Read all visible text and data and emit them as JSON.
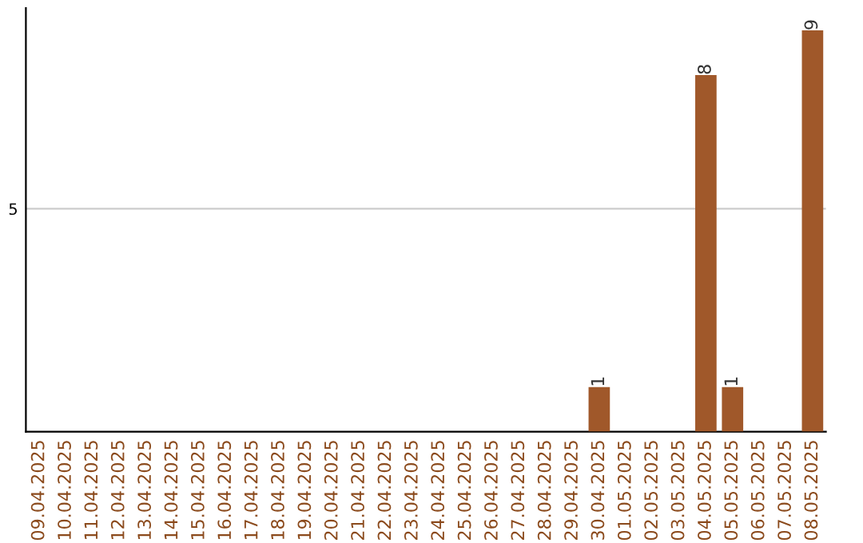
{
  "chart_data": {
    "type": "bar",
    "categories": [
      "09.04.2025",
      "10.04.2025",
      "11.04.2025",
      "12.04.2025",
      "13.04.2025",
      "14.04.2025",
      "15.04.2025",
      "16.04.2025",
      "17.04.2025",
      "18.04.2025",
      "19.04.2025",
      "20.04.2025",
      "21.04.2025",
      "22.04.2025",
      "23.04.2025",
      "24.04.2025",
      "25.04.2025",
      "26.04.2025",
      "27.04.2025",
      "28.04.2025",
      "29.04.2025",
      "30.04.2025",
      "01.05.2025",
      "02.05.2025",
      "03.05.2025",
      "04.05.2025",
      "05.05.2025",
      "06.05.2025",
      "07.05.2025",
      "08.05.2025"
    ],
    "values": [
      null,
      null,
      null,
      null,
      null,
      null,
      null,
      null,
      null,
      null,
      null,
      null,
      null,
      null,
      null,
      null,
      null,
      null,
      null,
      null,
      null,
      1,
      null,
      null,
      null,
      8,
      1,
      null,
      null,
      9
    ],
    "value_labels": [
      null,
      null,
      null,
      null,
      null,
      null,
      null,
      null,
      null,
      null,
      null,
      null,
      null,
      null,
      null,
      null,
      null,
      null,
      null,
      null,
      null,
      "1",
      null,
      null,
      null,
      "8",
      "1",
      null,
      null,
      "9"
    ],
    "ylim": [
      0,
      9.5
    ],
    "yticks": [
      5
    ],
    "grid": "y",
    "color": "#a0582a"
  }
}
